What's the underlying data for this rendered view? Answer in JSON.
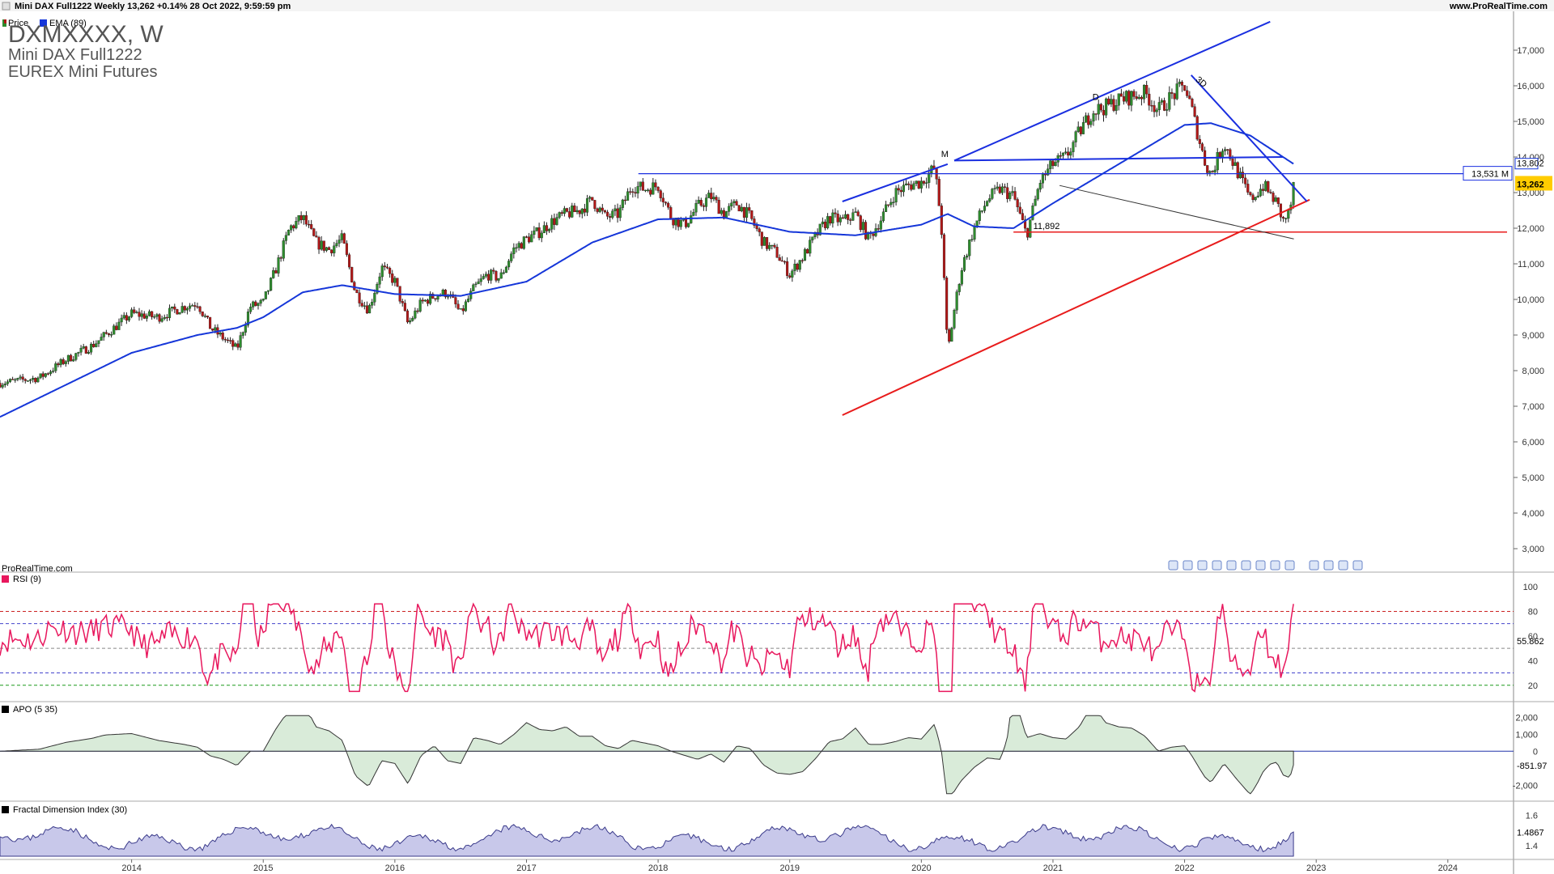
{
  "header": {
    "title": "Mini DAX Full1222 Weekly 13,262 +0.14% 28 Oct 2022, 9:59:59 pm",
    "website": "www.ProRealTime.com",
    "legend_price": "Price",
    "legend_ema": "EMA (89)"
  },
  "instrument": {
    "symbol": "DXMXXXX, W",
    "name": "Mini DAX Full1222",
    "exchange": "EUREX Mini Futures"
  },
  "watermark": "ProRealTime.com",
  "colors": {
    "up_candle": "#2e8b2e",
    "down_candle": "#b01818",
    "ema": "#1536d9",
    "trend_blue": "#1a2fe0",
    "support_red": "#e81c1c",
    "rsi": "#e8175d",
    "apo_pos": "#2f8a3a",
    "apo_neg": "#9a3a3a",
    "fdi": "#3a3a8a",
    "fdi_fill": "#c8c8ea"
  },
  "chart_data": [
    {
      "type": "candlestick",
      "title": "Mini DAX Full1222 Weekly",
      "y_ticks": [
        "3,000",
        "4,000",
        "5,000",
        "6,000",
        "7,000",
        "8,000",
        "9,000",
        "10,000",
        "11,000",
        "12,000",
        "13,000",
        "14,000",
        "15,000",
        "16,000",
        "17,000"
      ],
      "ylim": [
        2500,
        18000
      ],
      "x_ticks": [
        "2014",
        "2015",
        "2016",
        "2017",
        "2018",
        "2019",
        "2020",
        "2021",
        "2022",
        "2023",
        "2024"
      ],
      "last_price": 13262,
      "last_price_label": "13,262",
      "ema_label": "EMA (89)",
      "ema_value_label": "13,802",
      "horizontal_line_label": "13,531 M",
      "support_label": "11,892",
      "annotations": [
        "M",
        "D",
        "3D"
      ],
      "price_path": [
        [
          2013.0,
          7650
        ],
        [
          2013.3,
          7800
        ],
        [
          2013.5,
          8300
        ],
        [
          2013.7,
          8700
        ],
        [
          2013.9,
          9300
        ],
        [
          2014.0,
          9600
        ],
        [
          2014.2,
          9500
        ],
        [
          2014.4,
          9800
        ],
        [
          2014.5,
          9900
        ],
        [
          2014.6,
          9200
        ],
        [
          2014.8,
          8600
        ],
        [
          2014.9,
          9800
        ],
        [
          2015.0,
          9900
        ],
        [
          2015.1,
          10900
        ],
        [
          2015.2,
          12000
        ],
        [
          2015.3,
          12300
        ],
        [
          2015.4,
          11600
        ],
        [
          2015.5,
          11400
        ],
        [
          2015.6,
          11700
        ],
        [
          2015.7,
          10200
        ],
        [
          2015.8,
          9700
        ],
        [
          2015.9,
          10900
        ],
        [
          2016.0,
          10500
        ],
        [
          2016.1,
          9300
        ],
        [
          2016.2,
          9900
        ],
        [
          2016.3,
          10100
        ],
        [
          2016.4,
          10200
        ],
        [
          2016.5,
          9600
        ],
        [
          2016.6,
          10300
        ],
        [
          2016.7,
          10700
        ],
        [
          2016.8,
          10600
        ],
        [
          2016.9,
          11400
        ],
        [
          2017.0,
          11700
        ],
        [
          2017.1,
          11900
        ],
        [
          2017.2,
          12200
        ],
        [
          2017.3,
          12400
        ],
        [
          2017.4,
          12500
        ],
        [
          2017.5,
          12800
        ],
        [
          2017.6,
          12300
        ],
        [
          2017.7,
          12400
        ],
        [
          2017.8,
          13200
        ],
        [
          2017.9,
          13100
        ],
        [
          2018.0,
          13200
        ],
        [
          2018.1,
          12300
        ],
        [
          2018.2,
          12100
        ],
        [
          2018.3,
          12600
        ],
        [
          2018.4,
          12900
        ],
        [
          2018.5,
          12400
        ],
        [
          2018.6,
          12700
        ],
        [
          2018.7,
          12300
        ],
        [
          2018.8,
          11600
        ],
        [
          2018.9,
          11300
        ],
        [
          2019.0,
          10700
        ],
        [
          2019.1,
          11200
        ],
        [
          2019.2,
          11800
        ],
        [
          2019.3,
          12300
        ],
        [
          2019.4,
          12200
        ],
        [
          2019.5,
          12400
        ],
        [
          2019.6,
          11700
        ],
        [
          2019.7,
          12300
        ],
        [
          2019.8,
          13000
        ],
        [
          2019.9,
          13200
        ],
        [
          2020.0,
          13300
        ],
        [
          2020.1,
          13700
        ],
        [
          2020.15,
          12200
        ],
        [
          2020.2,
          8500
        ],
        [
          2020.25,
          9700
        ],
        [
          2020.3,
          10800
        ],
        [
          2020.4,
          12000
        ],
        [
          2020.5,
          12800
        ],
        [
          2020.6,
          13100
        ],
        [
          2020.7,
          12900
        ],
        [
          2020.8,
          11800
        ],
        [
          2020.9,
          13300
        ],
        [
          2021.0,
          13800
        ],
        [
          2021.1,
          14000
        ],
        [
          2021.2,
          14700
        ],
        [
          2021.3,
          15300
        ],
        [
          2021.4,
          15400
        ],
        [
          2021.5,
          15600
        ],
        [
          2021.6,
          15700
        ],
        [
          2021.7,
          15800
        ],
        [
          2021.8,
          15300
        ],
        [
          2021.9,
          15700
        ],
        [
          2022.0,
          16000
        ],
        [
          2022.05,
          15400
        ],
        [
          2022.15,
          13900
        ],
        [
          2022.2,
          13500
        ],
        [
          2022.3,
          14400
        ],
        [
          2022.4,
          13600
        ],
        [
          2022.5,
          12800
        ],
        [
          2022.6,
          13200
        ],
        [
          2022.7,
          12700
        ],
        [
          2022.75,
          12200
        ],
        [
          2022.8,
          12450
        ],
        [
          2022.83,
          13262
        ]
      ],
      "ema_path": [
        [
          2013.0,
          6700
        ],
        [
          2013.5,
          7600
        ],
        [
          2014.0,
          8500
        ],
        [
          2014.5,
          9000
        ],
        [
          2014.8,
          9200
        ],
        [
          2015.0,
          9500
        ],
        [
          2015.3,
          10200
        ],
        [
          2015.6,
          10400
        ],
        [
          2016.0,
          10150
        ],
        [
          2016.5,
          10100
        ],
        [
          2017.0,
          10500
        ],
        [
          2017.5,
          11600
        ],
        [
          2018.0,
          12250
        ],
        [
          2018.5,
          12300
        ],
        [
          2019.0,
          11900
        ],
        [
          2019.5,
          11800
        ],
        [
          2020.0,
          12100
        ],
        [
          2020.2,
          12400
        ],
        [
          2020.4,
          12050
        ],
        [
          2020.7,
          12000
        ],
        [
          2021.0,
          12700
        ],
        [
          2021.5,
          13800
        ],
        [
          2022.0,
          14900
        ],
        [
          2022.2,
          14950
        ],
        [
          2022.5,
          14600
        ],
        [
          2022.83,
          13802
        ]
      ]
    },
    {
      "type": "line",
      "title": "RSI (9)",
      "last_value_label": "55.862",
      "y_ticks": [
        "20",
        "40",
        "60",
        "80",
        "100"
      ],
      "ylim": [
        10,
        100
      ],
      "reference_levels": [
        20,
        30,
        50,
        70,
        80
      ]
    },
    {
      "type": "area",
      "title": "APO (5 35)",
      "last_value_label": "-851.97",
      "y_ticks": [
        "2,000",
        "1,000",
        "0",
        "-2,000"
      ],
      "ylim": [
        -2700,
        2300
      ]
    },
    {
      "type": "area",
      "title": "Fractal Dimension Index (30)",
      "last_value_label": "1.4867",
      "y_ticks": [
        "1.6",
        "1.4"
      ],
      "ylim": [
        1.33,
        1.64
      ]
    }
  ]
}
